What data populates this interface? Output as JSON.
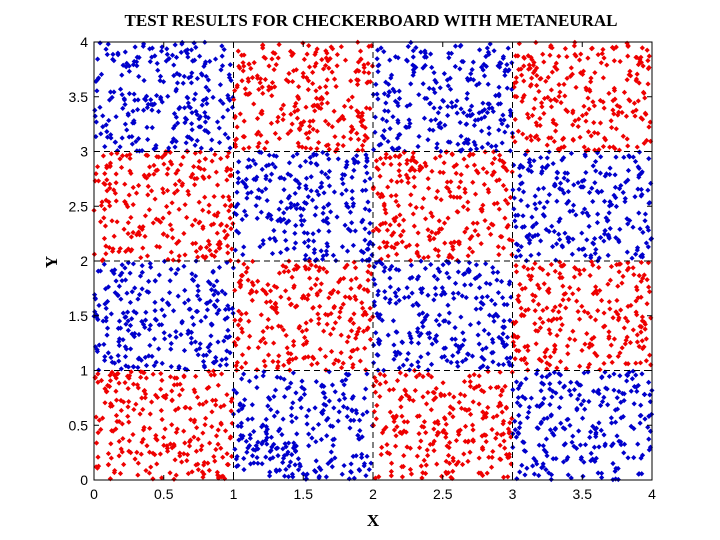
{
  "chart_data": {
    "type": "scatter",
    "title": "TEST RESULTS FOR CHECKERBOARD WITH METANEURAL",
    "xlabel": "X",
    "ylabel": "Y",
    "xlim": [
      0,
      4
    ],
    "ylim": [
      0,
      4
    ],
    "x_ticks": [
      "0",
      "0.5",
      "1",
      "1.5",
      "2",
      "2.5",
      "3",
      "3.5",
      "4"
    ],
    "y_ticks": [
      "0",
      "0.5",
      "1",
      "1.5",
      "2",
      "2.5",
      "3",
      "3.5",
      "4"
    ],
    "grid": true,
    "grid_style": "dashed",
    "legend": "none",
    "colors": {
      "class_a": "#0000cc",
      "class_b": "#ee0000"
    },
    "cells": [
      {
        "x_range": [
          0,
          1
        ],
        "y_range": [
          3,
          4
        ],
        "class": "class_a"
      },
      {
        "x_range": [
          1,
          2
        ],
        "y_range": [
          3,
          4
        ],
        "class": "class_b"
      },
      {
        "x_range": [
          2,
          3
        ],
        "y_range": [
          3,
          4
        ],
        "class": "class_a"
      },
      {
        "x_range": [
          3,
          4
        ],
        "y_range": [
          3,
          4
        ],
        "class": "class_b"
      },
      {
        "x_range": [
          0,
          1
        ],
        "y_range": [
          2,
          3
        ],
        "class": "class_b"
      },
      {
        "x_range": [
          1,
          2
        ],
        "y_range": [
          2,
          3
        ],
        "class": "class_a"
      },
      {
        "x_range": [
          2,
          3
        ],
        "y_range": [
          2,
          3
        ],
        "class": "class_b"
      },
      {
        "x_range": [
          3,
          4
        ],
        "y_range": [
          2,
          3
        ],
        "class": "class_a"
      },
      {
        "x_range": [
          0,
          1
        ],
        "y_range": [
          1,
          2
        ],
        "class": "class_a"
      },
      {
        "x_range": [
          1,
          2
        ],
        "y_range": [
          1,
          2
        ],
        "class": "class_b"
      },
      {
        "x_range": [
          2,
          3
        ],
        "y_range": [
          1,
          2
        ],
        "class": "class_a"
      },
      {
        "x_range": [
          3,
          4
        ],
        "y_range": [
          1,
          2
        ],
        "class": "class_b"
      },
      {
        "x_range": [
          0,
          1
        ],
        "y_range": [
          0,
          1
        ],
        "class": "class_b"
      },
      {
        "x_range": [
          1,
          2
        ],
        "y_range": [
          0,
          1
        ],
        "class": "class_a"
      },
      {
        "x_range": [
          2,
          3
        ],
        "y_range": [
          0,
          1
        ],
        "class": "class_b"
      },
      {
        "x_range": [
          3,
          4
        ],
        "y_range": [
          0,
          1
        ],
        "class": "class_a"
      }
    ],
    "points_per_cell": 250,
    "marker": "diamond"
  }
}
